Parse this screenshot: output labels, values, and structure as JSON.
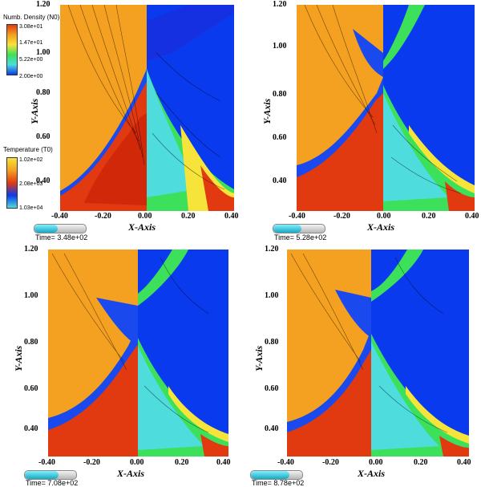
{
  "axes": {
    "xlabel": "X-Axis",
    "ylabel": "Y-Axis",
    "xticks": [
      "-0.40",
      "-0.20",
      "0.00",
      "0.20",
      "0.40"
    ],
    "yticks": [
      "1.20",
      "1.00",
      "0.80",
      "0.60",
      "0.40"
    ]
  },
  "legend": {
    "density_title": "Numb. Density (N0)",
    "density_values": [
      "3.08e+01",
      "1.47e+01",
      "5.22e+00",
      "2.00e+00"
    ],
    "temperature_title": "Temperature (T0)",
    "temperature_values": [
      "1.02e+02",
      "2.08e+03",
      "1.03e+04"
    ]
  },
  "panels": [
    {
      "time_label": "Time= 3.48e+02",
      "progress": 0.45
    },
    {
      "time_label": "Time= 5.28e+02",
      "progress": 0.55
    },
    {
      "time_label": "Time= 7.08e+02",
      "progress": 0.65
    },
    {
      "time_label": "Time= 8.78e+02",
      "progress": 0.75
    }
  ],
  "colors": {
    "orange": "#f4a020",
    "red": "#e23a10",
    "blue": "#0a3aee",
    "green": "#3ce05a",
    "cyan": "#4fdcdc",
    "yellow": "#f6e43a"
  }
}
